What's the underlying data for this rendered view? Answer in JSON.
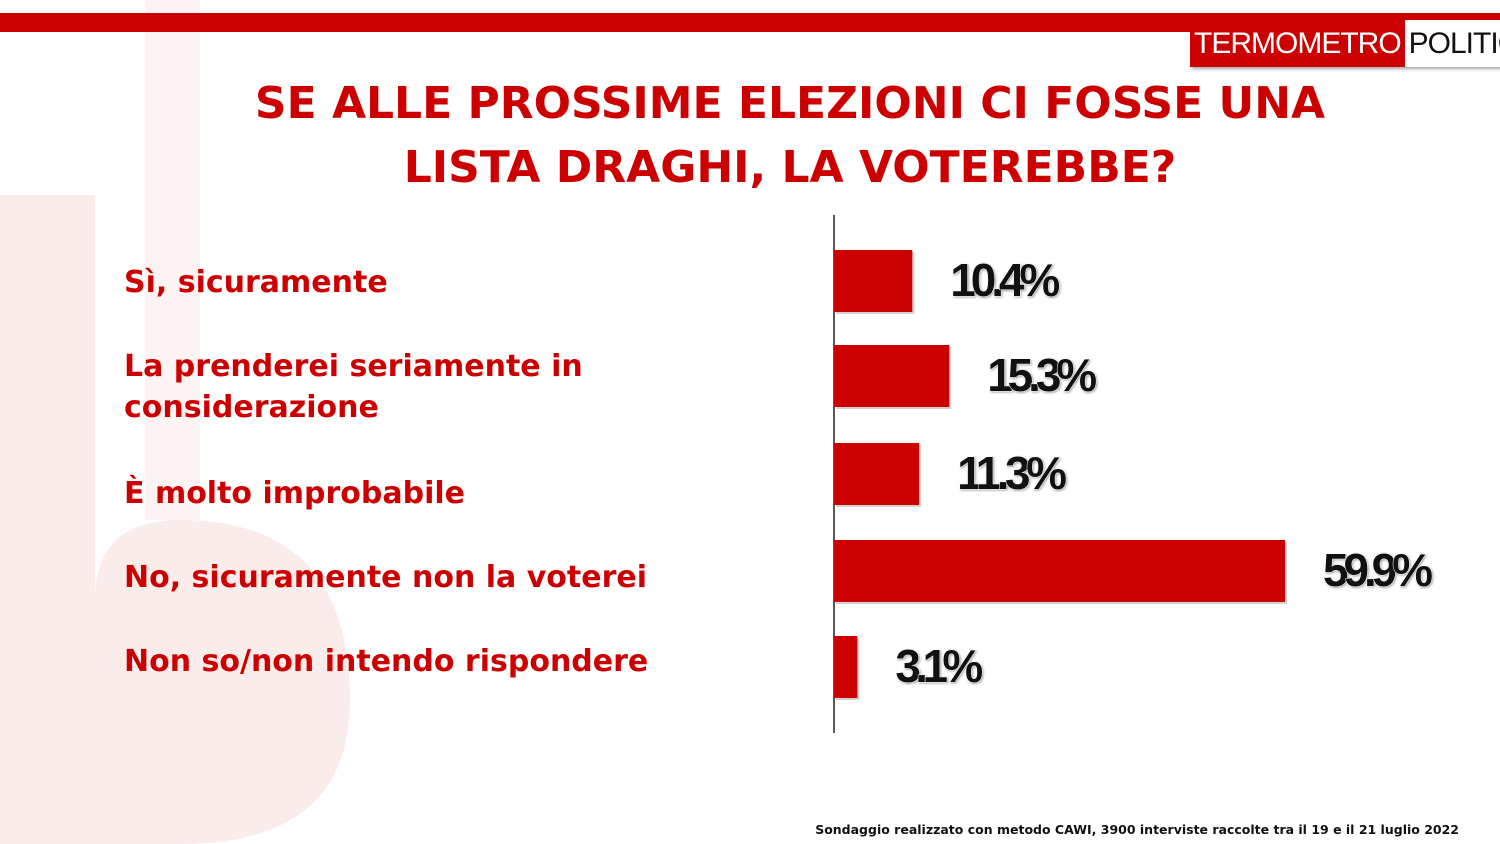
{
  "logo": {
    "part1": "TERMOMETRO",
    "part2": "POLITICO"
  },
  "title_lines": [
    "SE ALLE PROSSIME ELEZIONI CI FOSSE UNA",
    "LISTA DRAGHI, LA VOTEREBBE?"
  ],
  "chart_data": {
    "type": "bar",
    "orientation": "horizontal",
    "title": "SE ALLE PROSSIME ELEZIONI CI FOSSE UNA LISTA DRAGHI, LA VOTEREBBE?",
    "categories": [
      "Sì, sicuramente",
      "La prenderei seriamente in considerazione",
      "È molto improbabile",
      "No, sicuramente non la voterei",
      "Non so/non intendo rispondere"
    ],
    "values": [
      10.4,
      15.3,
      11.3,
      59.9,
      3.1
    ],
    "data_labels": [
      "10.4%",
      "15.3%",
      "11.3%",
      "59.9%",
      "3.1%"
    ],
    "unit": "%",
    "xlim": [
      0,
      60
    ],
    "bar_color": "#cc0000",
    "grid": false,
    "legend": "none"
  },
  "labels": {
    "cat0": "Sì, sicuramente",
    "cat1_line1": "La prenderei seriamente in",
    "cat1_line2": "considerazione",
    "cat2": "È molto improbabile",
    "cat3": "No, sicuramente non la voterei",
    "cat4": "Non so/non intendo rispondere"
  },
  "footnote": "Sondaggio realizzato con metodo CAWI, 3900 interviste raccolte tra il 19 e il 21 luglio 2022",
  "colors": {
    "accent": "#cc0000",
    "text_dark": "#111111"
  }
}
